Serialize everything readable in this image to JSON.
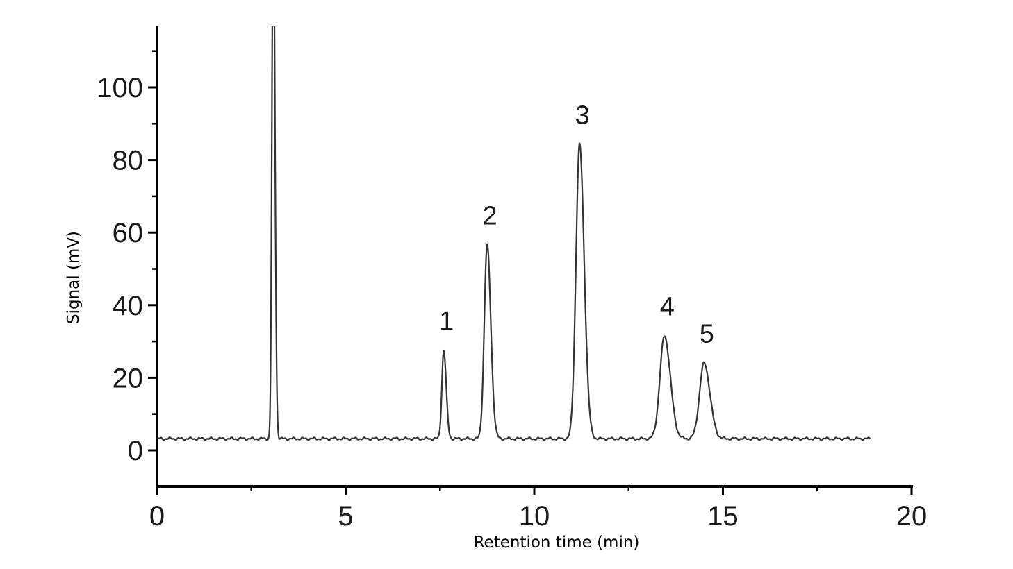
{
  "chart_data": {
    "type": "line",
    "title": "",
    "xlabel": "Retention time (min)",
    "ylabel": "Signal (mV)",
    "xlim": [
      0,
      20
    ],
    "ylim": [
      -10,
      110
    ],
    "x_ticks": [
      "0",
      "5",
      "10",
      "15",
      "20"
    ],
    "y_ticks": [
      "0",
      "20",
      "40",
      "60",
      "80",
      "100"
    ],
    "grid": false,
    "legend": "none",
    "line_color": "#333333",
    "baseline": 3.2,
    "series": [
      {
        "peaks": [
          {
            "label": "",
            "x": 3.08,
            "y": 150,
            "sigma": 0.035
          },
          {
            "label": "1",
            "x": 7.6,
            "y": 27.5,
            "sigma": 0.05
          },
          {
            "label": "2",
            "x": 8.75,
            "y": 56.5,
            "sigma": 0.075
          },
          {
            "label": "3",
            "x": 11.2,
            "y": 84.2,
            "sigma": 0.095
          },
          {
            "label": "4",
            "x": 13.45,
            "y": 31.5,
            "sigma": 0.12
          },
          {
            "label": "5",
            "x": 14.5,
            "y": 24,
            "sigma": 0.12
          }
        ],
        "x_end": 18.9
      }
    ]
  }
}
